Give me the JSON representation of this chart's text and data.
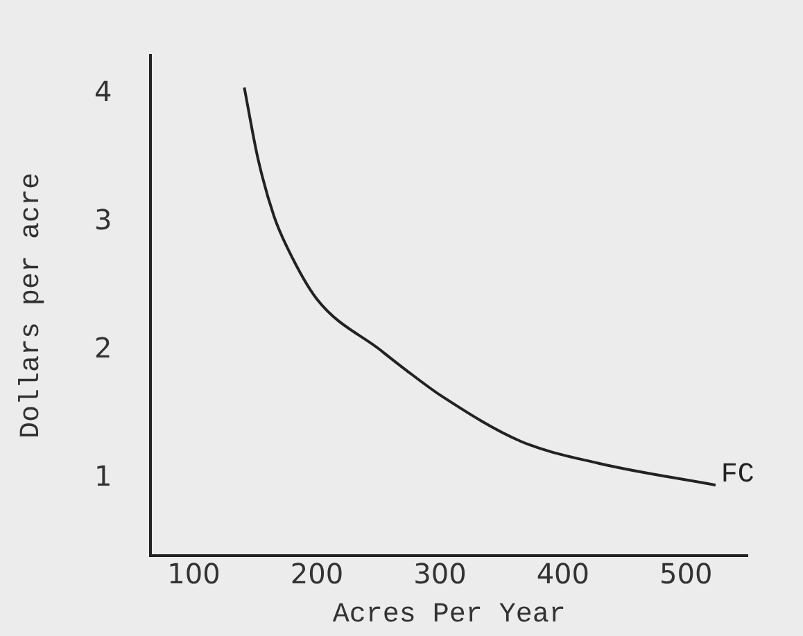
{
  "chart_data": {
    "type": "line",
    "xlabel": "Acres Per Year",
    "ylabel": "Dollars per acre",
    "xlim": [
      65,
      550
    ],
    "xticks": [
      100,
      200,
      300,
      400,
      500
    ],
    "ylim": [
      0.4,
      4.3
    ],
    "yticks": [
      1,
      2,
      3,
      4
    ],
    "grid": false,
    "legend": false,
    "marker": "none",
    "line_style": "solid",
    "series": [
      {
        "name": "FC",
        "color": "#222222",
        "x": [
          141,
          152,
          165,
          176,
          200,
          252,
          272,
          302,
          366,
          429,
          524
        ],
        "values": [
          4.05,
          3.5,
          3.05,
          2.8,
          2.4,
          2.0,
          1.85,
          1.64,
          1.29,
          1.12,
          0.95
        ]
      }
    ]
  }
}
